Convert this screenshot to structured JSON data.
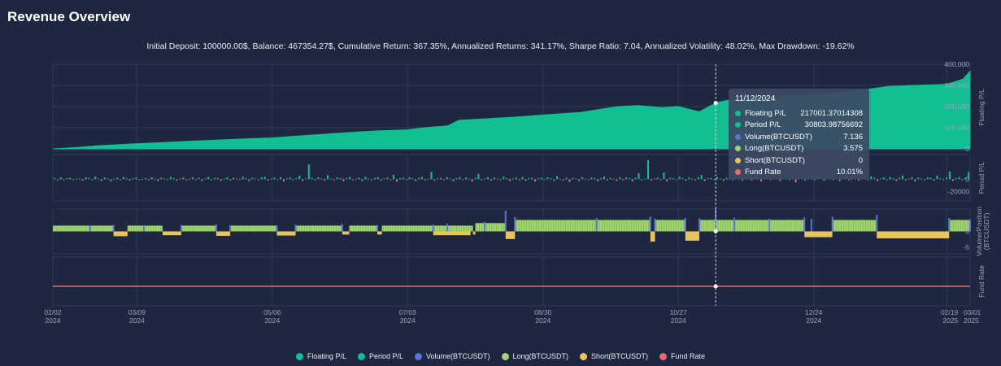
{
  "header": {
    "title": "Revenue Overview",
    "stats": "Initial Deposit: 100000.00$, Balance: 467354.27$, Cumulative Return: 367.35%, Annualized Returns: 341.17%, Sharpe Ratio: 7.04, Annualized Volatility: 48.02%, Max Drawdown: -19.62%"
  },
  "colors": {
    "background": "#1f2740",
    "floating": "#12bf93",
    "period_pos": "#12bf93",
    "period_neg": "#e0737e",
    "volume": "#5a73d4",
    "long": "#a2d66e",
    "short": "#e8c45a",
    "fund_rate": "#e86a72"
  },
  "tooltip": {
    "date": "11/12/2024",
    "rows": [
      {
        "label": "Floating P/L",
        "value": "217001.37014308",
        "color": "#12bf93"
      },
      {
        "label": "Period P/L",
        "value": "30803.98756692",
        "color": "#12bf93"
      },
      {
        "label": "Volume(BTCUSDT)",
        "value": "7.136",
        "color": "#5a73d4"
      },
      {
        "label": "Long(BTCUSDT)",
        "value": "3.575",
        "color": "#a2d66e"
      },
      {
        "label": "Short(BTCUSDT)",
        "value": "0",
        "color": "#e8c45a"
      },
      {
        "label": "Fund Rate",
        "value": "10.01%",
        "color": "#e86a72"
      }
    ]
  },
  "legend": [
    {
      "label": "Floating P/L",
      "color": "#12bf93"
    },
    {
      "label": "Period P/L",
      "color": "#12bf93"
    },
    {
      "label": "Volume(BTCUSDT)",
      "color": "#5a73d4"
    },
    {
      "label": "Long(BTCUSDT)",
      "color": "#a2d66e"
    },
    {
      "label": "Short(BTCUSDT)",
      "color": "#e8c45a"
    },
    {
      "label": "Fund Rate",
      "color": "#e86a72"
    }
  ],
  "chart_data": {
    "type": "area",
    "x_range": [
      "2024-02-02",
      "2025-03-01"
    ],
    "x_ticks": [
      {
        "date": "2024-02-02",
        "l1": "02/02",
        "l2": "2024"
      },
      {
        "date": "2024-03-09",
        "l1": "03/09",
        "l2": "2024"
      },
      {
        "date": "2024-05-06",
        "l1": "05/06",
        "l2": "2024"
      },
      {
        "date": "2024-07-03",
        "l1": "07/03",
        "l2": "2024"
      },
      {
        "date": "2024-08-30",
        "l1": "08/30",
        "l2": "2024"
      },
      {
        "date": "2024-10-27",
        "l1": "10/27",
        "l2": "2024"
      },
      {
        "date": "2024-12-24",
        "l1": "12/24",
        "l2": "2024"
      },
      {
        "date": "2025-02-19",
        "l1": "02/19",
        "l2": "2025"
      },
      {
        "date": "2025-03-01",
        "l1": "03/01",
        "l2": "2025"
      }
    ],
    "crosshair_date": "2024-11-12",
    "floating_pl": {
      "name": "Floating P/L",
      "axis_label": "Floating P/L",
      "ylim": [
        0,
        400000
      ],
      "y_ticks": [
        {
          "v": 0,
          "label": "0"
        },
        {
          "v": 100000,
          "label": "100,000"
        },
        {
          "v": 200000,
          "label": "200,000"
        },
        {
          "v": 300000,
          "label": "300,000"
        },
        {
          "v": 400000,
          "label": "400,000"
        }
      ],
      "points": [
        [
          "2024-02-02",
          0
        ],
        [
          "2024-02-12",
          6000
        ],
        [
          "2024-02-22",
          15000
        ],
        [
          "2024-03-05",
          22000
        ],
        [
          "2024-03-20",
          30000
        ],
        [
          "2024-04-05",
          38000
        ],
        [
          "2024-04-20",
          45000
        ],
        [
          "2024-05-06",
          52000
        ],
        [
          "2024-05-20",
          63000
        ],
        [
          "2024-06-05",
          75000
        ],
        [
          "2024-06-20",
          85000
        ],
        [
          "2024-07-03",
          90000
        ],
        [
          "2024-07-10",
          100000
        ],
        [
          "2024-07-20",
          108000
        ],
        [
          "2024-07-25",
          135000
        ],
        [
          "2024-08-05",
          142000
        ],
        [
          "2024-08-18",
          150000
        ],
        [
          "2024-08-30",
          160000
        ],
        [
          "2024-09-15",
          172000
        ],
        [
          "2024-10-01",
          200000
        ],
        [
          "2024-10-10",
          205000
        ],
        [
          "2024-10-20",
          195000
        ],
        [
          "2024-10-27",
          200000
        ],
        [
          "2024-11-05",
          175000
        ],
        [
          "2024-11-12",
          217000
        ],
        [
          "2024-11-18",
          232000
        ],
        [
          "2024-11-25",
          240000
        ],
        [
          "2024-12-05",
          245000
        ],
        [
          "2024-12-24",
          255000
        ],
        [
          "2025-01-05",
          265000
        ],
        [
          "2025-01-15",
          280000
        ],
        [
          "2025-01-25",
          295000
        ],
        [
          "2025-02-05",
          300000
        ],
        [
          "2025-02-19",
          305000
        ],
        [
          "2025-02-26",
          330000
        ],
        [
          "2025-03-01",
          367000
        ]
      ]
    },
    "period_pl": {
      "name": "Period P/L",
      "axis_label": "Period P/L",
      "ylim": [
        -35000,
        40000
      ],
      "y_ticks": [
        {
          "v": 0,
          "label": "0"
        },
        {
          "v": -20000,
          "label": "-20000"
        }
      ],
      "values": [
        2100,
        -1400,
        3200,
        -900,
        1800,
        2500,
        -1200,
        900,
        1500,
        -2000,
        3000,
        2200,
        -800,
        4500,
        1200,
        -2600,
        2800,
        1600,
        -3100,
        900,
        2400,
        -1500,
        3500,
        1300,
        -2200,
        1700,
        2900,
        -1100,
        600,
        2000,
        -1700,
        3300,
        1100,
        -2700,
        2600,
        1400,
        -900,
        3800,
        1900,
        -2300,
        1200,
        2700,
        -1600,
        800,
        3100,
        -1300,
        2300,
        -2800,
        1500,
        3600,
        -1000,
        2100,
        1800,
        -2400,
        900,
        3200,
        -1800,
        2500,
        1100,
        -1200,
        4200,
        1700,
        -2900,
        2200,
        1300,
        -1500,
        2800,
        3900,
        -2100,
        1000,
        2400,
        -1300,
        3300,
        -3500,
        1600,
        2700,
        -900,
        1900,
        5800,
        -2600,
        1200,
        24000,
        2300,
        -1700,
        3100,
        1500,
        -2200,
        6500,
        1100,
        -1900,
        2900,
        1700,
        -3200,
        2000,
        3600,
        -1400,
        1300,
        2500,
        -2700,
        4100,
        1000,
        -1600,
        2200,
        3400,
        -2000,
        1500,
        2800,
        -1100,
        7200,
        -3800,
        1800,
        2600,
        -1300,
        3000,
        1400,
        -2500,
        2100,
        3700,
        -1800,
        900,
        12000,
        -2300,
        1600,
        2400,
        -1500,
        3300,
        1200,
        -2900,
        1800,
        3500,
        -1200,
        2700,
        1000,
        -3300,
        2300,
        8800,
        -1700,
        1500,
        3100,
        -2100,
        2600,
        1300,
        -1400,
        4400,
        1900,
        -2800,
        1100,
        2900,
        -1600,
        3800,
        -2400,
        1700,
        2200,
        -3600,
        1400,
        2600,
        -1100,
        3200,
        1800,
        -2200,
        5200,
        1200,
        -1900,
        2500,
        -4200,
        2100,
        1500,
        -2600,
        3400,
        1000,
        -1300,
        2800,
        2300,
        -3000,
        1600,
        4600,
        -1800,
        2000,
        1200,
        -2500,
        3100,
        -1400,
        2700,
        1700,
        -3400,
        2400,
        9600,
        -1900,
        1100,
        30800,
        -2200,
        1500,
        2500,
        -1600,
        11000,
        -3100,
        2200,
        1800,
        -1300,
        3900,
        1400,
        -2400,
        2700,
        1000,
        -1700,
        3300,
        6800,
        -2900,
        1600,
        2100,
        -1100,
        3600,
        1200,
        -2600,
        2400,
        1900,
        -1500,
        3000,
        8200,
        -2300,
        1300,
        2900,
        -1800,
        4300,
        1100,
        -3700,
        2200,
        1700,
        -1200,
        3500,
        2600,
        -2700,
        1500,
        5500,
        -1400,
        2300,
        -5000,
        1800,
        3100,
        -2000,
        1200,
        2800,
        -1600,
        9200,
        1400,
        -2400,
        2500,
        3700,
        -1300,
        2000,
        -3000,
        1600,
        7400,
        -1700,
        2600,
        1100,
        -2200,
        3300,
        1900,
        -1400,
        4800,
        2300,
        -2800,
        1500,
        2900,
        -1200,
        3800,
        1700,
        -2500,
        2400,
        6100,
        -1800,
        1300,
        3400,
        -3200,
        2700,
        1000,
        -1600,
        3200,
        2200,
        -2100,
        5900,
        1400,
        -1300,
        2800,
        12500,
        -2700,
        1900,
        3600,
        -1500,
        2500,
        11800
      ]
    },
    "position": {
      "axis_label": "Volume/Position (BTCUSDT)",
      "ylim": [
        -7,
        7
      ],
      "y_ticks": [
        {
          "v": 0,
          "label": "0"
        },
        {
          "v": -5,
          "label": "-5"
        }
      ],
      "long_segments": [
        [
          "2024-02-02",
          "2024-02-28",
          1.8
        ],
        [
          "2024-03-05",
          "2024-03-20",
          1.8
        ],
        [
          "2024-03-28",
          "2024-04-12",
          1.8
        ],
        [
          "2024-04-18",
          "2024-05-08",
          1.8
        ],
        [
          "2024-05-16",
          "2024-06-05",
          1.8
        ],
        [
          "2024-06-08",
          "2024-06-20",
          1.8
        ],
        [
          "2024-06-22",
          "2024-07-31",
          1.8
        ],
        [
          "2024-08-01",
          "2024-08-14",
          2.6
        ],
        [
          "2024-08-18",
          "2024-10-15",
          3.6
        ],
        [
          "2024-10-17",
          "2024-10-30",
          3.6
        ],
        [
          "2024-11-05",
          "2024-12-20",
          3.6
        ],
        [
          "2025-01-01",
          "2025-01-20",
          3.6
        ],
        [
          "2025-02-20",
          "2025-03-01",
          3.6
        ]
      ],
      "short_segments": [
        [
          "2024-02-28",
          "2024-03-05",
          -1.5
        ],
        [
          "2024-03-20",
          "2024-03-28",
          -1.2
        ],
        [
          "2024-04-12",
          "2024-04-18",
          -1.4
        ],
        [
          "2024-05-08",
          "2024-05-16",
          -1.3
        ],
        [
          "2024-06-05",
          "2024-06-08",
          -1.0
        ],
        [
          "2024-06-20",
          "2024-06-22",
          -1.0
        ],
        [
          "2024-07-31",
          "2024-08-01",
          -1.0
        ],
        [
          "2024-07-14",
          "2024-07-30",
          -1.2
        ],
        [
          "2024-08-14",
          "2024-08-18",
          -2.4
        ],
        [
          "2024-10-15",
          "2024-10-17",
          -3.2
        ],
        [
          "2024-10-30",
          "2024-11-05",
          -2.9
        ],
        [
          "2024-12-20",
          "2025-01-01",
          -1.8
        ],
        [
          "2025-01-20",
          "2025-02-20",
          -2.2
        ]
      ],
      "volume": [
        [
          "2024-02-18",
          1.8
        ],
        [
          "2024-02-28",
          2.0
        ],
        [
          "2024-03-12",
          1.6
        ],
        [
          "2024-03-28",
          2.0
        ],
        [
          "2024-04-12",
          2.2
        ],
        [
          "2024-04-18",
          1.9
        ],
        [
          "2024-05-08",
          1.7
        ],
        [
          "2024-05-16",
          2.1
        ],
        [
          "2024-06-05",
          2.3
        ],
        [
          "2024-06-20",
          2.0
        ],
        [
          "2024-07-14",
          2.1
        ],
        [
          "2024-07-20",
          2.4
        ],
        [
          "2024-08-05",
          3.0
        ],
        [
          "2024-08-14",
          6.5
        ],
        [
          "2024-08-18",
          4.5
        ],
        [
          "2024-09-22",
          4.2
        ],
        [
          "2024-10-15",
          4.6
        ],
        [
          "2024-10-17",
          4.0
        ],
        [
          "2024-10-30",
          4.2
        ],
        [
          "2024-11-05",
          4.1
        ],
        [
          "2024-11-12",
          7.1
        ],
        [
          "2024-11-20",
          4.3
        ],
        [
          "2024-12-05",
          4.0
        ],
        [
          "2024-12-20",
          4.4
        ],
        [
          "2024-12-23",
          3.9
        ],
        [
          "2025-01-01",
          4.6
        ],
        [
          "2025-01-20",
          5.2
        ],
        [
          "2025-02-20",
          4.2
        ],
        [
          "2025-03-01",
          3.8
        ]
      ]
    },
    "fund_rate": {
      "name": "Fund Rate",
      "axis_label": "Fund Rate",
      "value_pct": 10.01,
      "ylim": [
        0,
        25
      ]
    }
  }
}
